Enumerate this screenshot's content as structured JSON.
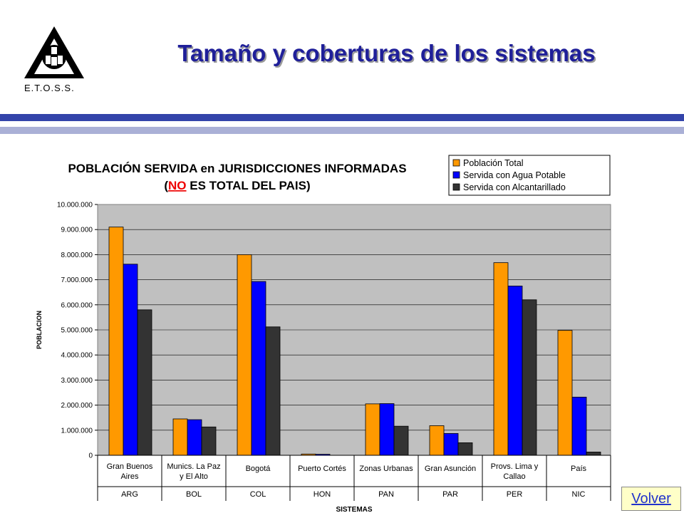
{
  "header": {
    "organization": "E.T.O.S.S.",
    "title": "Tamaño y coberturas de los sistemas"
  },
  "nav": {
    "back_label": "Volver"
  },
  "colors": {
    "accent_dark": "#3344aa",
    "accent_light": "#aab0d6",
    "title": "#1f1f99",
    "plot_bg": "#c0c0c0"
  },
  "chart_data": {
    "type": "bar",
    "title_line1": "POBLACIÓN SERVIDA en JURISDICCIONES INFORMADAS",
    "title_line2_open": "(",
    "title_line2_emph": "NO",
    "title_line2_rest": " ES TOTAL DEL PAIS)",
    "xlabel": "SISTEMAS",
    "ylabel": "POBLACION",
    "ylim": [
      0,
      10000000
    ],
    "yticks": [
      "0",
      "1.000.000",
      "2.000.000",
      "3.000.000",
      "4.000.000",
      "5.000.000",
      "6.000.000",
      "7.000.000",
      "8.000.000",
      "9.000.000",
      "10.000.000"
    ],
    "grid": true,
    "legend_position": "top-right",
    "categories": [
      {
        "line1": "Gran Buenos",
        "line2": "Aires",
        "country": "ARG"
      },
      {
        "line1": "Munics. La Paz",
        "line2": "y El Alto",
        "country": "BOL"
      },
      {
        "line1": "Bogotá",
        "line2": "",
        "country": "COL"
      },
      {
        "line1": "Puerto Cortés",
        "line2": "",
        "country": "HON"
      },
      {
        "line1": "Zonas Urbanas",
        "line2": "",
        "country": "PAN"
      },
      {
        "line1": "Gran Asunción",
        "line2": "",
        "country": "PAR"
      },
      {
        "line1": "Provs. Lima y",
        "line2": "Callao",
        "country": "PER"
      },
      {
        "line1": "País",
        "line2": "",
        "country": "NIC"
      }
    ],
    "series": [
      {
        "name": "Población Total",
        "color": "#ff9900",
        "values": [
          9100000,
          1450000,
          8000000,
          50000,
          2050000,
          1180000,
          7680000,
          4980000
        ]
      },
      {
        "name": "Servida con Agua Potable",
        "color": "#0000ff",
        "values": [
          7620000,
          1420000,
          6930000,
          40000,
          2060000,
          870000,
          6750000,
          2320000
        ]
      },
      {
        "name": "Servida con Alcantarillado",
        "color": "#333333",
        "values": [
          5800000,
          1130000,
          5120000,
          0,
          1160000,
          500000,
          6200000,
          130000
        ]
      }
    ]
  }
}
